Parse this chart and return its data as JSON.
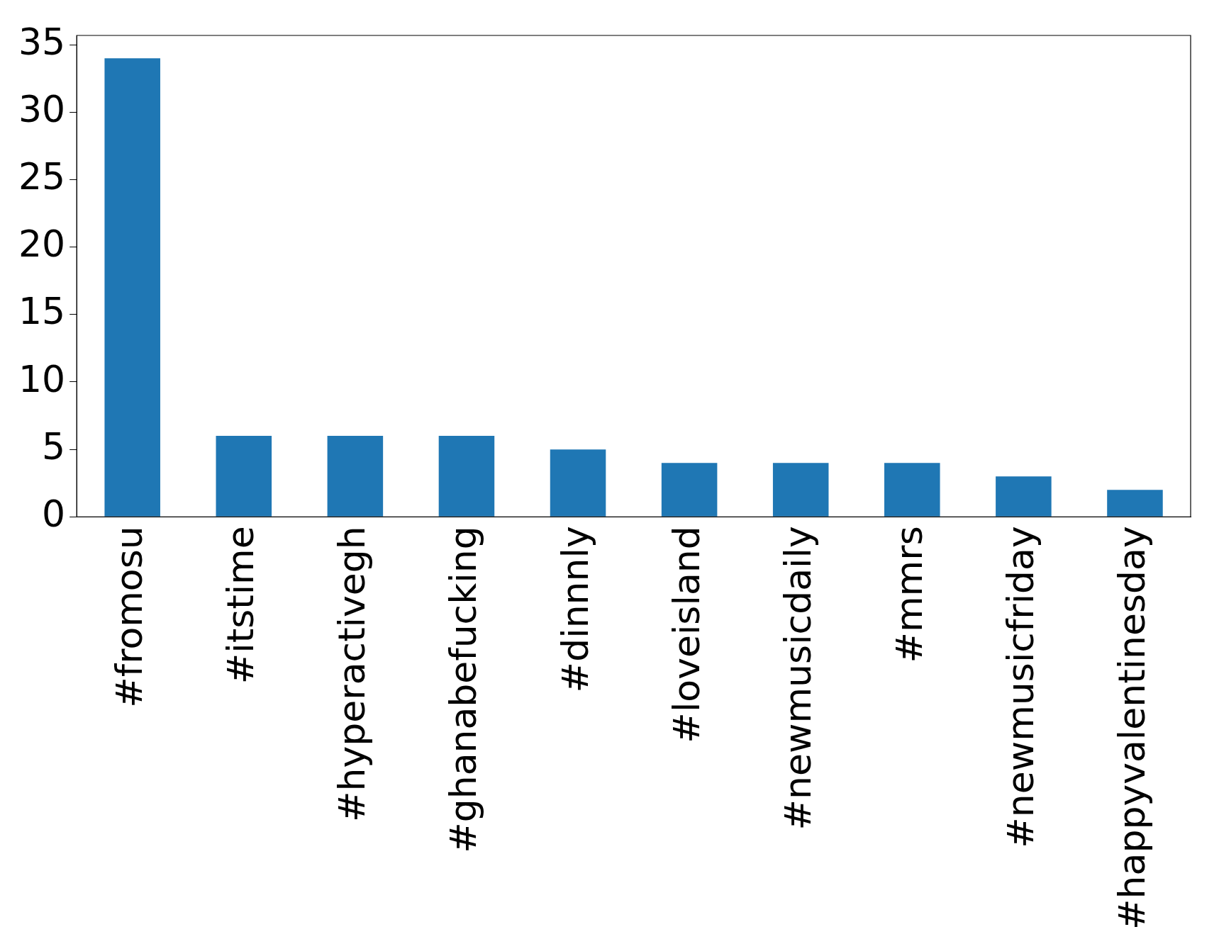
{
  "chart_data": {
    "type": "bar",
    "categories": [
      "#fromosu",
      "#itstime",
      "#hyperactivegh",
      "#ghanabefucking",
      "#dinnnly",
      "#loveisland",
      "#newmusicdaily",
      "#mmrs",
      "#newmusicfriday",
      "#happyvalentinesday"
    ],
    "values": [
      34,
      6,
      6,
      6,
      5,
      4,
      4,
      4,
      3,
      2
    ],
    "color": "#1f77b4",
    "ylim": [
      0,
      35.7
    ],
    "yticks": [
      0,
      5,
      10,
      15,
      20,
      25,
      30,
      35
    ],
    "grid": false,
    "legend": false
  }
}
